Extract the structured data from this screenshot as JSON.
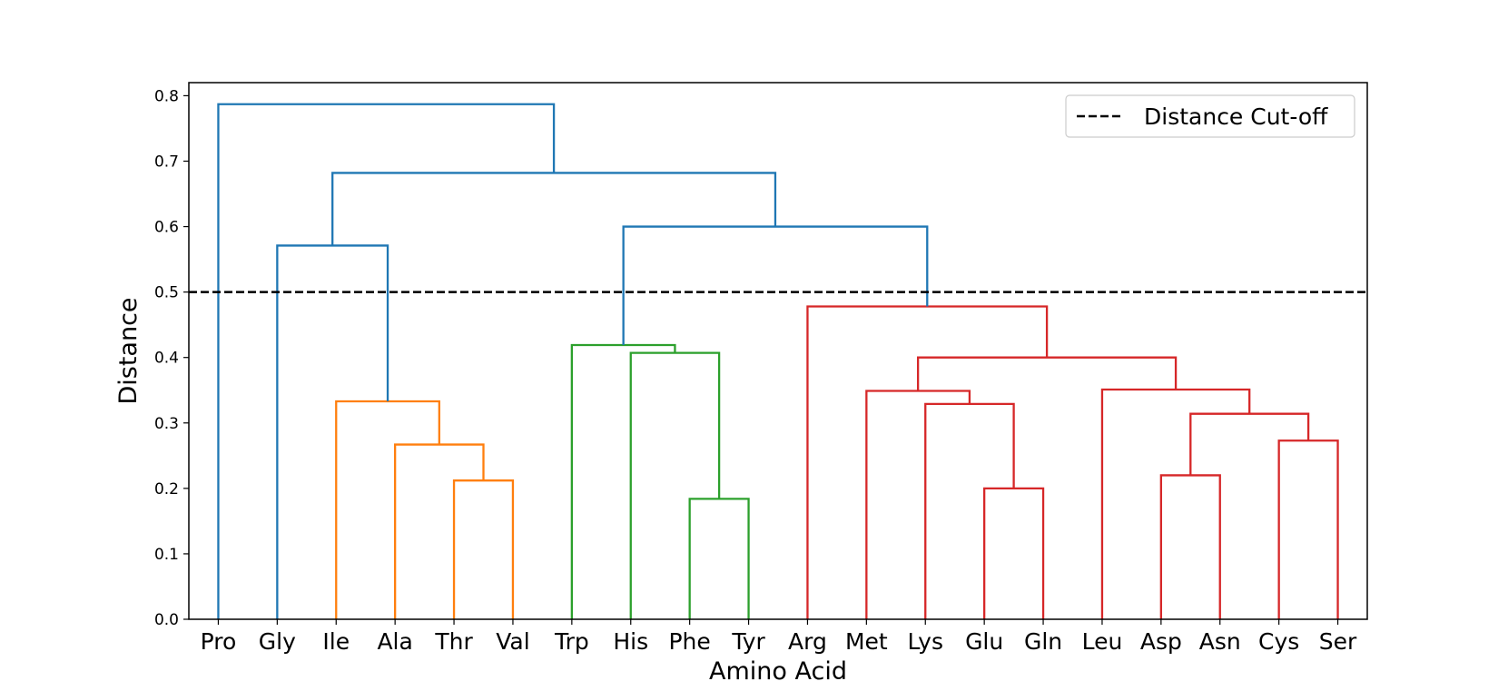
{
  "chart_data": {
    "type": "dendrogram",
    "title": "",
    "xlabel": "Amino Acid",
    "ylabel": "Distance",
    "ylim": [
      0,
      0.82
    ],
    "yticks": [
      "0.0",
      "0.1",
      "0.2",
      "0.3",
      "0.4",
      "0.5",
      "0.6",
      "0.7",
      "0.8"
    ],
    "leaves": [
      "Pro",
      "Gly",
      "Ile",
      "Ala",
      "Thr",
      "Val",
      "Trp",
      "His",
      "Phe",
      "Tyr",
      "Arg",
      "Met",
      "Lys",
      "Glu",
      "Gln",
      "Leu",
      "Asp",
      "Asn",
      "Cys",
      "Ser"
    ],
    "cutoff": {
      "value": 0.5,
      "label": "Distance Cut-off",
      "color": "#000000",
      "style": "dashed"
    },
    "legend": {
      "position": "top-right",
      "entries": [
        "Distance Cut-off"
      ]
    },
    "colors": {
      "above": "#1f77b4",
      "cluster1": "#ff7f0e",
      "cluster2": "#2ca02c",
      "cluster3": "#d62728"
    },
    "merges": [
      {
        "left": "Thr",
        "right": "Val",
        "height": 0.212,
        "color": "cluster1"
      },
      {
        "left": "Ala",
        "right": "Thr+Val",
        "height": 0.267,
        "color": "cluster1"
      },
      {
        "left": "Ile",
        "right": "Ala+Thr+Val",
        "height": 0.333,
        "color": "cluster1"
      },
      {
        "left": "Phe",
        "right": "Tyr",
        "height": 0.184,
        "color": "cluster2"
      },
      {
        "left": "His",
        "right": "Phe+Tyr",
        "height": 0.407,
        "color": "cluster2"
      },
      {
        "left": "Trp",
        "right": "His+Phe+Tyr",
        "height": 0.419,
        "color": "cluster2"
      },
      {
        "left": "Glu",
        "right": "Gln",
        "height": 0.2,
        "color": "cluster3"
      },
      {
        "left": "Lys",
        "right": "Glu+Gln",
        "height": 0.329,
        "color": "cluster3"
      },
      {
        "left": "Met",
        "right": "Lys+Glu+Gln",
        "height": 0.349,
        "color": "cluster3"
      },
      {
        "left": "Asp",
        "right": "Asn",
        "height": 0.22,
        "color": "cluster3"
      },
      {
        "left": "Cys",
        "right": "Ser",
        "height": 0.273,
        "color": "cluster3"
      },
      {
        "left": "Asp+Asn",
        "right": "Cys+Ser",
        "height": 0.314,
        "color": "cluster3"
      },
      {
        "left": "Leu",
        "right": "Asp+Asn+Cys+Ser",
        "height": 0.351,
        "color": "cluster3"
      },
      {
        "left": "Met..Gln",
        "right": "Leu..Ser",
        "height": 0.4,
        "color": "cluster3"
      },
      {
        "left": "Arg",
        "right": "Met..Ser",
        "height": 0.478,
        "color": "cluster3"
      },
      {
        "left": "Gly",
        "right": "Ile..Val",
        "height": 0.571,
        "color": "above"
      },
      {
        "left": "Trp..Tyr",
        "right": "Arg..Ser",
        "height": 0.6,
        "color": "above"
      },
      {
        "left": "Gly..Val",
        "right": "Trp..Ser",
        "height": 0.682,
        "color": "above"
      },
      {
        "left": "Pro",
        "right": "Gly..Ser",
        "height": 0.787,
        "color": "above"
      }
    ]
  }
}
